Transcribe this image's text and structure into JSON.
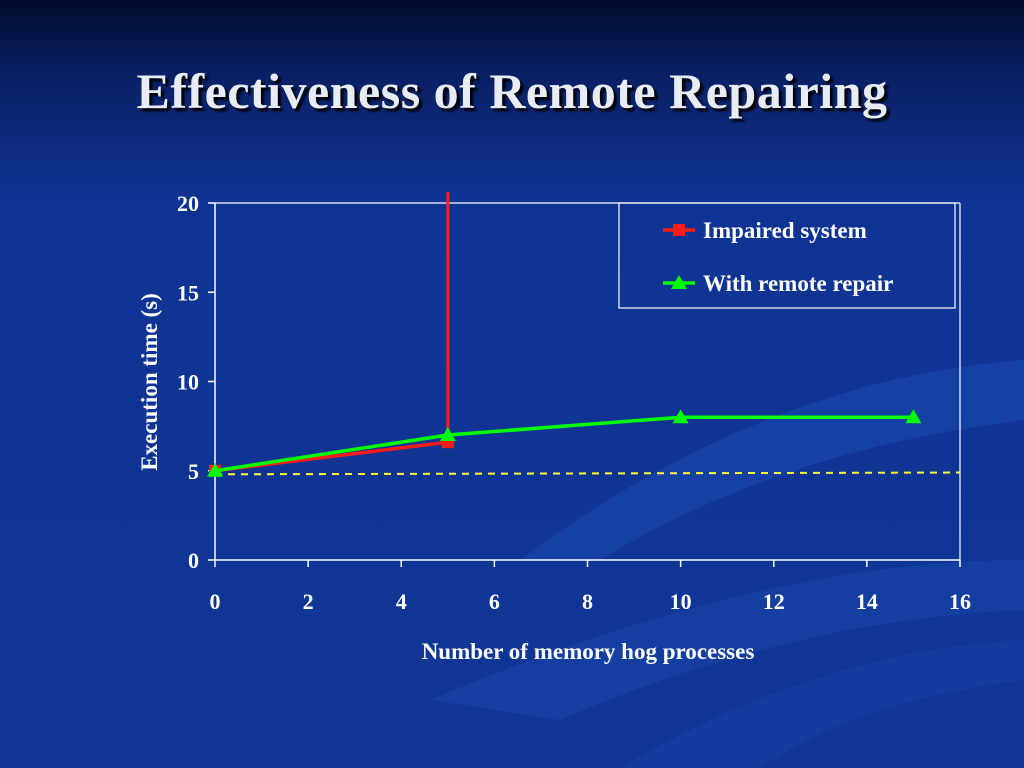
{
  "slide": {
    "title": "Effectiveness of Remote Repairing"
  },
  "chart_data": {
    "type": "line",
    "xlabel": "Number of memory hog processes",
    "ylabel": "Execution time (s)",
    "xlim": [
      0,
      16
    ],
    "ylim": [
      0,
      20
    ],
    "x_ticks": [
      "0",
      "2",
      "4",
      "6",
      "8",
      "10",
      "12",
      "14",
      "16"
    ],
    "y_ticks": [
      "0",
      "5",
      "10",
      "15",
      "20"
    ],
    "grid": false,
    "legend_position": "top-right",
    "series": [
      {
        "name": "Impaired system",
        "color": "#ff1a1a",
        "marker": "square",
        "points": [
          [
            0,
            5
          ],
          [
            5,
            6.6
          ]
        ],
        "spike": {
          "x": 5,
          "value": "off-scale"
        }
      },
      {
        "name": "With remote repair",
        "color": "#00ff00",
        "marker": "triangle",
        "points": [
          [
            0,
            5
          ],
          [
            5,
            7
          ],
          [
            10,
            8
          ],
          [
            15,
            8
          ]
        ]
      }
    ],
    "reference_line": {
      "style": "dashed",
      "color": "#ffff33",
      "points": [
        [
          0,
          4.8
        ],
        [
          16,
          4.9
        ]
      ]
    }
  }
}
